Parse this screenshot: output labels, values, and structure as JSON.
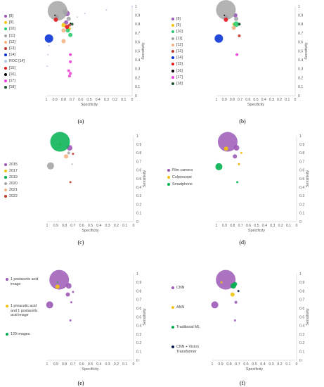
{
  "figure": {
    "captions": [
      "(a)",
      "(b)",
      "(c)",
      "(d)",
      "(e)",
      "(f)"
    ]
  },
  "chart_data": [
    {
      "type": "scatter",
      "panel": "a",
      "xlabel": "Specificity",
      "ylabel": "Sensitivity",
      "x_reversed": true,
      "xlim": [
        0,
        1
      ],
      "ylim": [
        0,
        1
      ],
      "xticks": [
        "1",
        "0.9",
        "0.8",
        "0.7",
        "0.6",
        "0.5",
        "0.4",
        "0.3",
        "0.2",
        "0.1",
        "0"
      ],
      "yticks": [
        "0",
        "0.1",
        "0.2",
        "0.3",
        "0.4",
        "0.5",
        "0.6",
        "0.7",
        "0.8",
        "0.9",
        "1"
      ],
      "legend_position": "left",
      "series": [
        {
          "name": "[8]",
          "color": "#9b59b6",
          "points": [
            {
              "x": 0.88,
              "y": 0.88,
              "r": 3
            },
            {
              "x": 0.76,
              "y": 0.92,
              "r": 4
            },
            {
              "x": 0.77,
              "y": 0.82,
              "r": 3
            }
          ]
        },
        {
          "name": "[9]",
          "color": "#f1c40f",
          "points": [
            {
              "x": 0.8,
              "y": 0.79,
              "r": 3
            },
            {
              "x": 0.73,
              "y": 0.75,
              "r": 2
            }
          ]
        },
        {
          "name": "[10]",
          "color": "#2ecc71",
          "points": [
            {
              "x": 0.75,
              "y": 0.73,
              "r": 3
            },
            {
              "x": 0.72,
              "y": 0.68,
              "r": 3
            }
          ]
        },
        {
          "name": "[11]",
          "color": "#a6a6a6",
          "points": [
            {
              "x": 0.87,
              "y": 0.95,
              "r": 14
            },
            {
              "x": 0.78,
              "y": 0.94,
              "r": 4
            },
            {
              "x": 0.74,
              "y": 0.86,
              "r": 3
            }
          ]
        },
        {
          "name": "[12]",
          "color": "#f4b183",
          "points": [
            {
              "x": 0.8,
              "y": 0.73,
              "r": 3
            },
            {
              "x": 0.8,
              "y": 0.61,
              "r": 3
            }
          ]
        },
        {
          "name": "[13]",
          "color": "#c0392b",
          "points": [
            {
              "x": 0.73,
              "y": 0.79,
              "r": 2
            }
          ]
        },
        {
          "name": "[14]",
          "color": "#0b35d6",
          "points": [
            {
              "x": 0.97,
              "y": 0.64,
              "r": 6
            }
          ]
        },
        {
          "name": "ROC [14]",
          "color": "#b4c7e7",
          "points": [
            {
              "x": 0.99,
              "y": 0.33,
              "r": 1
            },
            {
              "x": 0.98,
              "y": 0.46,
              "r": 1
            },
            {
              "x": 0.97,
              "y": 0.56,
              "r": 1
            },
            {
              "x": 0.8,
              "y": 0.82,
              "r": 1
            },
            {
              "x": 0.64,
              "y": 0.88,
              "r": 1
            },
            {
              "x": 0.55,
              "y": 0.92,
              "r": 1
            },
            {
              "x": 0.3,
              "y": 0.96,
              "r": 1
            },
            {
              "x": 0,
              "y": 1,
              "r": 1
            }
          ]
        },
        {
          "name": "[15]",
          "color": "#e31a1c",
          "points": [
            {
              "x": 0.89,
              "y": 0.85,
              "r": 3
            },
            {
              "x": 0.76,
              "y": 0.77,
              "r": 3
            }
          ]
        },
        {
          "name": "[16]",
          "color": "#000000",
          "points": [
            {
              "x": 0.9,
              "y": 0.9,
              "r": 1
            },
            {
              "x": 0.72,
              "y": 0.81,
              "r": 1
            }
          ]
        },
        {
          "name": "[17]",
          "color": "#ea40d3",
          "points": [
            {
              "x": 0.72,
              "y": 0.46,
              "r": 2
            },
            {
              "x": 0.72,
              "y": 0.38,
              "r": 2
            },
            {
              "x": 0.74,
              "y": 0.28,
              "r": 2
            },
            {
              "x": 0.72,
              "y": 0.25,
              "r": 2
            },
            {
              "x": 0.73,
              "y": 0.22,
              "r": 2
            }
          ]
        },
        {
          "name": "[18]",
          "color": "#1e5631",
          "points": [
            {
              "x": 0.7,
              "y": 0.8,
              "r": 2
            }
          ]
        }
      ]
    },
    {
      "type": "scatter",
      "panel": "b",
      "xlabel": "Specificity",
      "ylabel": "Sensitivity",
      "x_reversed": true,
      "xlim": [
        0,
        1
      ],
      "ylim": [
        0,
        1
      ],
      "xticks": [
        "1",
        "0.9",
        "0.8",
        "0.7",
        "0.6",
        "0.5",
        "0.4",
        "0.3",
        "0.2",
        "0.1",
        "0"
      ],
      "yticks": [
        "0",
        "0.1",
        "0.2",
        "0.3",
        "0.4",
        "0.5",
        "0.6",
        "0.7",
        "0.8",
        "0.9",
        "1"
      ],
      "legend_position": "left",
      "series": [
        {
          "name": "[8]",
          "color": "#9b59b6",
          "points": [
            {
              "x": 0.88,
              "y": 0.88,
              "r": 3
            },
            {
              "x": 0.76,
              "y": 0.9,
              "r": 3
            }
          ]
        },
        {
          "name": "[9]",
          "color": "#f1c40f",
          "points": [
            {
              "x": 0.78,
              "y": 0.8,
              "r": 2
            }
          ]
        },
        {
          "name": "[10]",
          "color": "#2ecc71",
          "points": [
            {
              "x": 0.75,
              "y": 0.8,
              "r": 4
            }
          ]
        },
        {
          "name": "[11]",
          "color": "#a6a6a6",
          "points": [
            {
              "x": 0.88,
              "y": 0.96,
              "r": 14
            },
            {
              "x": 0.75,
              "y": 0.86,
              "r": 3
            }
          ]
        },
        {
          "name": "[12]",
          "color": "#f4b183",
          "points": [
            {
              "x": 0.78,
              "y": 0.76,
              "r": 3
            }
          ]
        },
        {
          "name": "[13]",
          "color": "#c0392b",
          "points": [
            {
              "x": 0.71,
              "y": 0.67,
              "r": 2
            }
          ]
        },
        {
          "name": "[14]",
          "color": "#0b35d6",
          "points": [
            {
              "x": 0.97,
              "y": 0.64,
              "r": 6
            }
          ]
        },
        {
          "name": "[15]",
          "color": "#e31a1c",
          "points": [
            {
              "x": 0.88,
              "y": 0.85,
              "r": 3
            }
          ]
        },
        {
          "name": "[16]",
          "color": "#000000",
          "points": [
            {
              "x": 0.9,
              "y": 0.9,
              "r": 1
            },
            {
              "x": 0.71,
              "y": 0.8,
              "r": 1
            }
          ]
        },
        {
          "name": "[17]",
          "color": "#ea40d3",
          "points": [
            {
              "x": 0.74,
              "y": 0.46,
              "r": 2
            }
          ]
        },
        {
          "name": "[18]",
          "color": "#1e5631",
          "points": [
            {
              "x": 0.71,
              "y": 0.8,
              "r": 2
            }
          ]
        }
      ]
    },
    {
      "type": "scatter",
      "panel": "c",
      "xlabel": "Specificity",
      "ylabel": "Sensitivity",
      "x_reversed": true,
      "xlim": [
        0,
        1
      ],
      "ylim": [
        0,
        1
      ],
      "xticks": [
        "1",
        "0.9",
        "0.8",
        "0.7",
        "0.6",
        "0.5",
        "0.4",
        "0.3",
        "0.2",
        "0.1",
        "0"
      ],
      "yticks": [
        "0",
        "0.1",
        "0.2",
        "0.3",
        "0.4",
        "0.5",
        "0.6",
        "0.7",
        "0.8",
        "0.9",
        "1"
      ],
      "legend_position": "left",
      "series": [
        {
          "name": "2015",
          "color": "#9b59b6",
          "points": [
            {
              "x": 0.74,
              "y": 0.86,
              "r": 4
            }
          ]
        },
        {
          "name": "2017",
          "color": "#f1c40f",
          "points": [
            {
              "x": 0.85,
              "y": 0.9,
              "r": 1.5
            }
          ]
        },
        {
          "name": "2019",
          "color": "#00b050",
          "points": [
            {
              "x": 0.85,
              "y": 0.93,
              "r": 14
            }
          ]
        },
        {
          "name": "2020",
          "color": "#a6a6a6",
          "points": [
            {
              "x": 0.96,
              "y": 0.65,
              "r": 5
            },
            {
              "x": 0.75,
              "y": 0.8,
              "r": 2
            },
            {
              "x": 0.71,
              "y": 0.67,
              "r": 1
            }
          ]
        },
        {
          "name": "2021",
          "color": "#f4b183",
          "points": [
            {
              "x": 0.78,
              "y": 0.76,
              "r": 3
            }
          ]
        },
        {
          "name": "2022",
          "color": "#c0392b",
          "points": [
            {
              "x": 0.7,
              "y": 0.79,
              "r": 1.5
            },
            {
              "x": 0.73,
              "y": 0.46,
              "r": 1.5
            }
          ]
        }
      ]
    },
    {
      "type": "scatter",
      "panel": "d",
      "xlabel": "Specificity",
      "ylabel": "Sensitivity",
      "x_reversed": true,
      "xlim": [
        0,
        1
      ],
      "ylim": [
        0,
        1
      ],
      "xticks": [
        "1",
        "0.9",
        "0.8",
        "0.7",
        "0.6",
        "0.5",
        "0.4",
        "0.3",
        "0.2",
        "0.1",
        "0"
      ],
      "yticks": [
        "0",
        "0.1",
        "0.2",
        "0.3",
        "0.4",
        "0.5",
        "0.6",
        "0.7",
        "0.8",
        "0.9",
        "1"
      ],
      "legend_position": "left",
      "series": [
        {
          "name": "Film camera",
          "color": "#9b59b6",
          "points": [
            {
              "x": 0.86,
              "y": 0.93,
              "r": 14
            },
            {
              "x": 0.75,
              "y": 0.86,
              "r": 4
            },
            {
              "x": 0.77,
              "y": 0.76,
              "r": 3
            },
            {
              "x": 0.72,
              "y": 0.67,
              "r": 1.5
            }
          ]
        },
        {
          "name": "Colposcope",
          "color": "#f1c40f",
          "points": [
            {
              "x": 0.88,
              "y": 0.85,
              "r": 3
            },
            {
              "x": 0.69,
              "y": 0.8,
              "r": 1.5
            },
            {
              "x": 0.72,
              "y": 0.67,
              "r": 1.5
            }
          ]
        },
        {
          "name": "Smartphone",
          "color": "#00b050",
          "points": [
            {
              "x": 0.97,
              "y": 0.64,
              "r": 5
            },
            {
              "x": 0.74,
              "y": 0.46,
              "r": 1.5
            }
          ]
        }
      ]
    },
    {
      "type": "scatter",
      "panel": "e",
      "xlabel": "Specificity",
      "ylabel": "Sensitivity",
      "x_reversed": true,
      "xlim": [
        0,
        1
      ],
      "ylim": [
        0,
        1
      ],
      "xticks": [
        "1",
        "0.9",
        "0.8",
        "0.7",
        "0.6",
        "0.5",
        "0.4",
        "0.3",
        "0.2",
        "0.1",
        "0"
      ],
      "yticks": [
        "0",
        "0.1",
        "0.2",
        "0.3",
        "0.4",
        "0.5",
        "0.6",
        "0.7",
        "0.8",
        "0.9",
        "1"
      ],
      "legend_position": "left",
      "series": [
        {
          "name": "1 postacetic acid image",
          "color": "#9b59b6",
          "points": [
            {
              "x": 0.86,
              "y": 0.93,
              "r": 14
            },
            {
              "x": 0.97,
              "y": 0.64,
              "r": 5
            },
            {
              "x": 0.75,
              "y": 0.86,
              "r": 4
            },
            {
              "x": 0.76,
              "y": 0.76,
              "r": 3
            },
            {
              "x": 0.7,
              "y": 0.79,
              "r": 1.5
            },
            {
              "x": 0.72,
              "y": 0.67,
              "r": 1.5
            },
            {
              "x": 0.73,
              "y": 0.46,
              "r": 1.5
            }
          ]
        },
        {
          "name": "1 preacetic acid and 1 postacetic acid image",
          "color": "#f1c40f",
          "points": [
            {
              "x": 0.88,
              "y": 0.85,
              "r": 3
            }
          ]
        },
        {
          "name": "120 images",
          "color": "#00b050",
          "points": [
            {
              "x": 0.88,
              "y": 0.9,
              "r": 1
            }
          ]
        }
      ]
    },
    {
      "type": "scatter",
      "panel": "f",
      "xlabel": "Specificity",
      "ylabel": "Sensitivity",
      "x_reversed": true,
      "xlim": [
        0,
        1
      ],
      "ylim": [
        0,
        1
      ],
      "xticks": [
        "1",
        "0.9",
        "0.8",
        "0.7",
        "0.6",
        "0.5",
        "0.4",
        "0.3",
        "0.2",
        "0.1",
        "0"
      ],
      "yticks": [
        "0",
        "0.1",
        "0.2",
        "0.3",
        "0.4",
        "0.5",
        "0.6",
        "0.7",
        "0.8",
        "0.9",
        "1"
      ],
      "legend_position": "left",
      "series": [
        {
          "name": "CNN",
          "color": "#9b59b6",
          "points": [
            {
              "x": 0.84,
              "y": 0.93,
              "r": 14
            },
            {
              "x": 0.97,
              "y": 0.64,
              "r": 5
            },
            {
              "x": 0.72,
              "y": 0.67,
              "r": 2
            },
            {
              "x": 0.73,
              "y": 0.46,
              "r": 1.5
            },
            {
              "x": 0.76,
              "y": 0.86,
              "r": 3
            }
          ]
        },
        {
          "name": "ANN",
          "color": "#f1c40f",
          "points": [
            {
              "x": 0.89,
              "y": 0.9,
              "r": 1.5
            },
            {
              "x": 0.76,
              "y": 0.76,
              "r": 3
            }
          ]
        },
        {
          "name": "Traditional ML",
          "color": "#00b050",
          "points": [
            {
              "x": 0.75,
              "y": 0.86,
              "r": 4
            },
            {
              "x": 0.73,
              "y": 0.88,
              "r": 3
            }
          ]
        },
        {
          "name": "CNN + Vision Transformer",
          "color": "#0b1b4d",
          "points": [
            {
              "x": 0.69,
              "y": 0.8,
              "r": 1.5
            }
          ]
        }
      ]
    }
  ]
}
